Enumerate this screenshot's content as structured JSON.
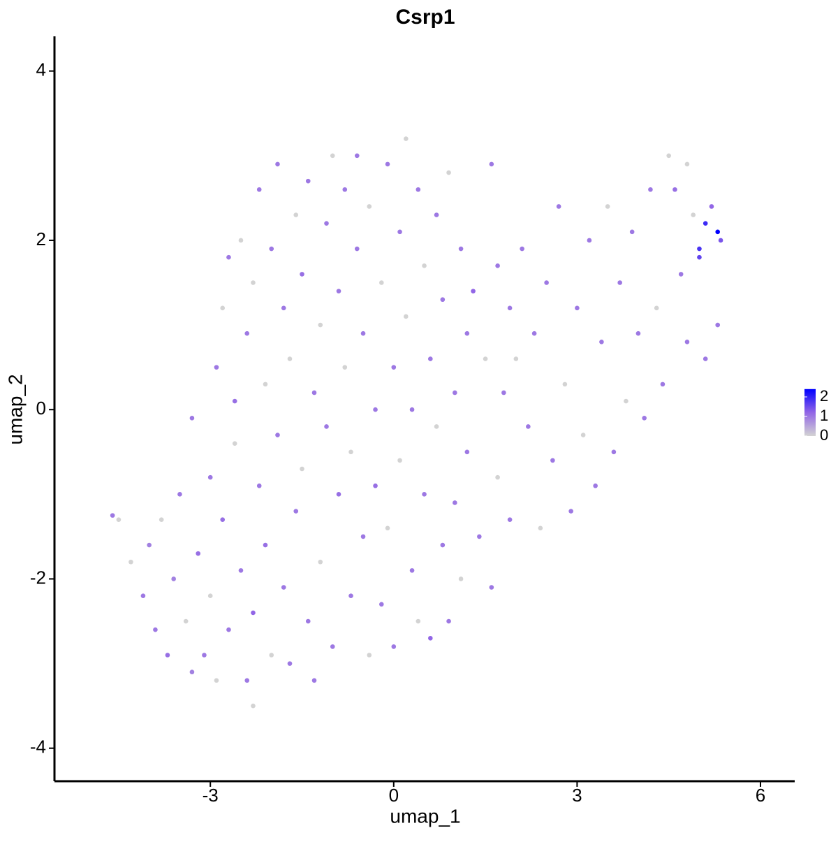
{
  "chart_data": {
    "type": "scatter",
    "title": "Csrp1",
    "x_label": "umap_1",
    "y_label": "umap_2",
    "xlim": [
      -5.55,
      6.56
    ],
    "ylim": [
      -4.39,
      4.41
    ],
    "xticks": [
      -3,
      0,
      3,
      6
    ],
    "yticks": [
      -4,
      -2,
      0,
      2,
      4
    ],
    "colors": [
      "#d3d3d3",
      "#9266e6",
      "#0000ff"
    ],
    "clim": [
      0,
      2.4
    ],
    "colorbar_ticks": [
      0,
      1,
      2
    ],
    "x": [
      -4.6,
      -4.5,
      -4.3,
      -4.1,
      -4.0,
      -3.9,
      -3.8,
      -3.7,
      -3.6,
      -3.5,
      -3.4,
      -3.3,
      -3.3,
      -3.2,
      -3.1,
      -3.0,
      -3.0,
      -2.9,
      -2.9,
      -2.8,
      -2.8,
      -2.7,
      -2.7,
      -2.6,
      -2.6,
      -2.5,
      -2.5,
      -2.4,
      -2.4,
      -2.3,
      -2.3,
      -2.3,
      -2.2,
      -2.2,
      -2.1,
      -2.1,
      -2.0,
      -2.0,
      -1.9,
      -1.9,
      -1.8,
      -1.8,
      -1.7,
      -1.7,
      -1.6,
      -1.6,
      -1.5,
      -1.5,
      -1.4,
      -1.4,
      -1.3,
      -1.3,
      -1.2,
      -1.2,
      -1.1,
      -1.1,
      -1.0,
      -1.0,
      -0.9,
      -0.9,
      -0.8,
      -0.8,
      -0.7,
      -0.7,
      -0.6,
      -0.6,
      -0.5,
      -0.5,
      -0.4,
      -0.4,
      -0.3,
      -0.3,
      -0.2,
      -0.2,
      -0.1,
      -0.1,
      0.0,
      0.0,
      0.1,
      0.1,
      0.2,
      0.2,
      0.3,
      0.3,
      0.4,
      0.4,
      0.5,
      0.5,
      0.6,
      0.6,
      0.7,
      0.7,
      0.8,
      0.8,
      0.9,
      0.9,
      1.0,
      1.0,
      1.1,
      1.1,
      1.2,
      1.2,
      1.3,
      1.4,
      1.5,
      1.6,
      1.6,
      1.7,
      1.7,
      1.8,
      1.9,
      1.9,
      2.0,
      2.1,
      2.2,
      2.3,
      2.4,
      2.5,
      2.6,
      2.7,
      2.8,
      2.9,
      3.0,
      3.1,
      3.2,
      3.3,
      3.4,
      3.5,
      3.6,
      3.7,
      3.8,
      3.9,
      4.0,
      4.1,
      4.2,
      4.3,
      4.4,
      4.5,
      4.6,
      4.7,
      4.8,
      4.9,
      5.0,
      5.1,
      5.2,
      5.3,
      5.35,
      5.1,
      5.0,
      4.8,
      5.3
    ],
    "y": [
      -1.25,
      -1.3,
      -1.8,
      -2.2,
      -1.6,
      -2.6,
      -1.3,
      -2.9,
      -2.0,
      -1.0,
      -2.5,
      -3.1,
      -0.1,
      -1.7,
      -2.9,
      -0.8,
      -2.2,
      0.5,
      -3.2,
      -1.3,
      1.2,
      -2.6,
      1.8,
      0.1,
      -0.4,
      -1.9,
      2.0,
      -3.2,
      0.9,
      -2.4,
      1.5,
      -3.5,
      -0.9,
      2.6,
      0.3,
      -1.6,
      -2.9,
      1.9,
      -0.3,
      2.9,
      -2.1,
      1.2,
      0.6,
      -3.0,
      2.3,
      -1.2,
      -0.7,
      1.6,
      2.7,
      -2.5,
      0.2,
      -3.2,
      1.0,
      -1.8,
      2.2,
      -0.2,
      3.0,
      -2.8,
      1.4,
      -1.0,
      0.5,
      2.6,
      -2.2,
      -0.5,
      1.9,
      3.0,
      -1.5,
      0.9,
      -2.9,
      2.4,
      0.0,
      -0.9,
      1.5,
      -2.3,
      2.9,
      -1.4,
      0.5,
      -2.8,
      2.1,
      -0.6,
      1.1,
      3.2,
      -1.9,
      0.0,
      2.6,
      -2.5,
      -1.0,
      1.7,
      -2.7,
      0.6,
      2.3,
      -0.2,
      -1.6,
      1.3,
      -2.5,
      2.8,
      0.2,
      -1.1,
      1.9,
      -2.0,
      0.9,
      -0.5,
      1.4,
      -1.5,
      0.6,
      2.9,
      -2.1,
      1.7,
      -0.8,
      0.2,
      1.2,
      -1.3,
      0.6,
      1.9,
      -0.2,
      0.9,
      -1.4,
      1.5,
      -0.6,
      2.4,
      0.3,
      -1.2,
      1.2,
      -0.3,
      2.0,
      -0.9,
      0.8,
      2.4,
      -0.5,
      1.5,
      0.1,
      2.1,
      0.9,
      -0.1,
      2.6,
      1.2,
      0.3,
      3.0,
      2.6,
      1.6,
      0.8,
      2.3,
      1.8,
      0.6,
      2.4,
      2.1,
      2.0,
      2.2,
      1.9,
      2.9,
      1.0
    ],
    "values": [
      1.0,
      0,
      0,
      1.0,
      0.9,
      1.0,
      0,
      1.1,
      0.9,
      1.0,
      0,
      0.9,
      1.0,
      1.1,
      1.0,
      1.0,
      0,
      1.0,
      0,
      1.1,
      0,
      1.0,
      1.0,
      1.1,
      0,
      1.0,
      0,
      1.0,
      1.0,
      1.2,
      0,
      0,
      1.0,
      1.0,
      0,
      1.1,
      0,
      1.0,
      1.0,
      1.0,
      1.0,
      1.0,
      0,
      1.0,
      0,
      1.0,
      0,
      1.1,
      1.0,
      1.0,
      1.0,
      1.0,
      0,
      0,
      1.0,
      1.0,
      0,
      1.0,
      1.0,
      1.1,
      0,
      1.0,
      1.0,
      0,
      1.0,
      1.0,
      1.0,
      1.0,
      0,
      0,
      1.0,
      1.1,
      0,
      1.0,
      1.0,
      0,
      1.0,
      1.0,
      1.0,
      0,
      0,
      0,
      1.0,
      1.0,
      1.0,
      0,
      1.0,
      0,
      1.2,
      1.0,
      1.0,
      0,
      1.0,
      1.0,
      1.0,
      0,
      1.0,
      1.0,
      1.0,
      0,
      1.0,
      1.0,
      1.2,
      1.0,
      0,
      1.0,
      1.0,
      1.0,
      0,
      1.0,
      1.0,
      1.0,
      0,
      1.0,
      1.0,
      1.0,
      0,
      1.0,
      1.0,
      1.0,
      0,
      1.0,
      1.0,
      0,
      1.0,
      1.0,
      1.0,
      0,
      1.0,
      1.0,
      0,
      1.0,
      1.0,
      1.0,
      1.0,
      0,
      1.0,
      0,
      1.1,
      1.0,
      1.0,
      0,
      1.6,
      1.0,
      1.2,
      2.4,
      1.4,
      1.9,
      1.8,
      0,
      1.0
    ]
  }
}
